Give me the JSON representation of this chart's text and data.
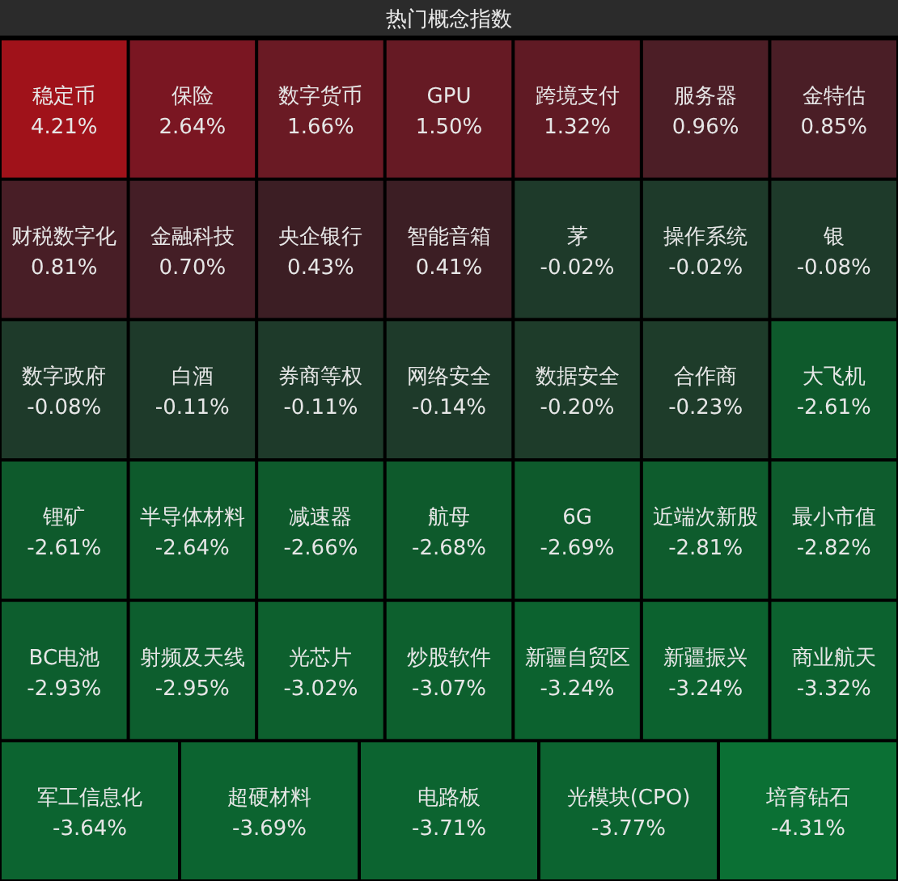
{
  "chart_data": {
    "type": "other",
    "title": "热门概念指数",
    "categories": [
      "稳定币",
      "保险",
      "数字货币",
      "GPU",
      "跨境支付",
      "服务器",
      "金特估",
      "财税数字化",
      "金融科技",
      "央企银行",
      "智能音箱",
      "茅",
      "操作系统",
      "银",
      "数字政府",
      "白酒",
      "券商等权",
      "网络安全",
      "数据安全",
      "合作商",
      "大飞机",
      "锂矿",
      "半导体材料",
      "减速器",
      "航母",
      "6G",
      "近端次新股",
      "最小市值",
      "BC电池",
      "射频及天线",
      "光芯片",
      "炒股软件",
      "新疆自贸区",
      "新疆振兴",
      "商业航天",
      "军工信息化",
      "超硬材料",
      "电路板",
      "光模块(CPO)",
      "培育钻石"
    ],
    "values": [
      4.21,
      2.64,
      1.66,
      1.5,
      1.32,
      0.96,
      0.85,
      0.81,
      0.7,
      0.43,
      0.41,
      -0.02,
      -0.02,
      -0.08,
      -0.08,
      -0.11,
      -0.11,
      -0.14,
      -0.2,
      -0.23,
      -2.61,
      -2.61,
      -2.64,
      -2.66,
      -2.68,
      -2.69,
      -2.81,
      -2.82,
      -2.93,
      -2.95,
      -3.02,
      -3.07,
      -3.24,
      -3.24,
      -3.32,
      -3.64,
      -3.69,
      -3.71,
      -3.77,
      -4.31
    ],
    "value_labels": [
      "4.21%",
      "2.64%",
      "1.66%",
      "1.50%",
      "1.32%",
      "0.96%",
      "0.85%",
      "0.81%",
      "0.70%",
      "0.43%",
      "0.41%",
      "-0.02%",
      "-0.02%",
      "-0.08%",
      "-0.08%",
      "-0.11%",
      "-0.11%",
      "-0.14%",
      "-0.20%",
      "-0.23%",
      "-2.61%",
      "-2.61%",
      "-2.64%",
      "-2.66%",
      "-2.68%",
      "-2.69%",
      "-2.81%",
      "-2.82%",
      "-2.93%",
      "-2.95%",
      "-3.02%",
      "-3.07%",
      "-3.24%",
      "-3.24%",
      "-3.32%",
      "-3.64%",
      "-3.69%",
      "-3.71%",
      "-3.77%",
      "-4.31%"
    ],
    "colors": [
      "#a0121a",
      "#7a1622",
      "#6a1a24",
      "#661a24",
      "#601a24",
      "#4c1e26",
      "#4a1e26",
      "#481e26",
      "#441e26",
      "#3c1e24",
      "#3c1e24",
      "#1e3a2a",
      "#1e3a2a",
      "#1e3a2a",
      "#1e3a2a",
      "#1e3a2a",
      "#1e3a2a",
      "#1e3a2a",
      "#1e3c2a",
      "#1e3c2a",
      "#0e5a2c",
      "#0e5a2c",
      "#0e5a2c",
      "#0e5a2c",
      "#0e5a2c",
      "#0e5a2c",
      "#0e5c2d",
      "#0e5c2d",
      "#0d5e2e",
      "#0d5e2e",
      "#0d602e",
      "#0d602e",
      "#0c622f",
      "#0c622f",
      "#0c622f",
      "#0c6430",
      "#0c6430",
      "#0c6430",
      "#0c6430",
      "#0b7034"
    ]
  }
}
